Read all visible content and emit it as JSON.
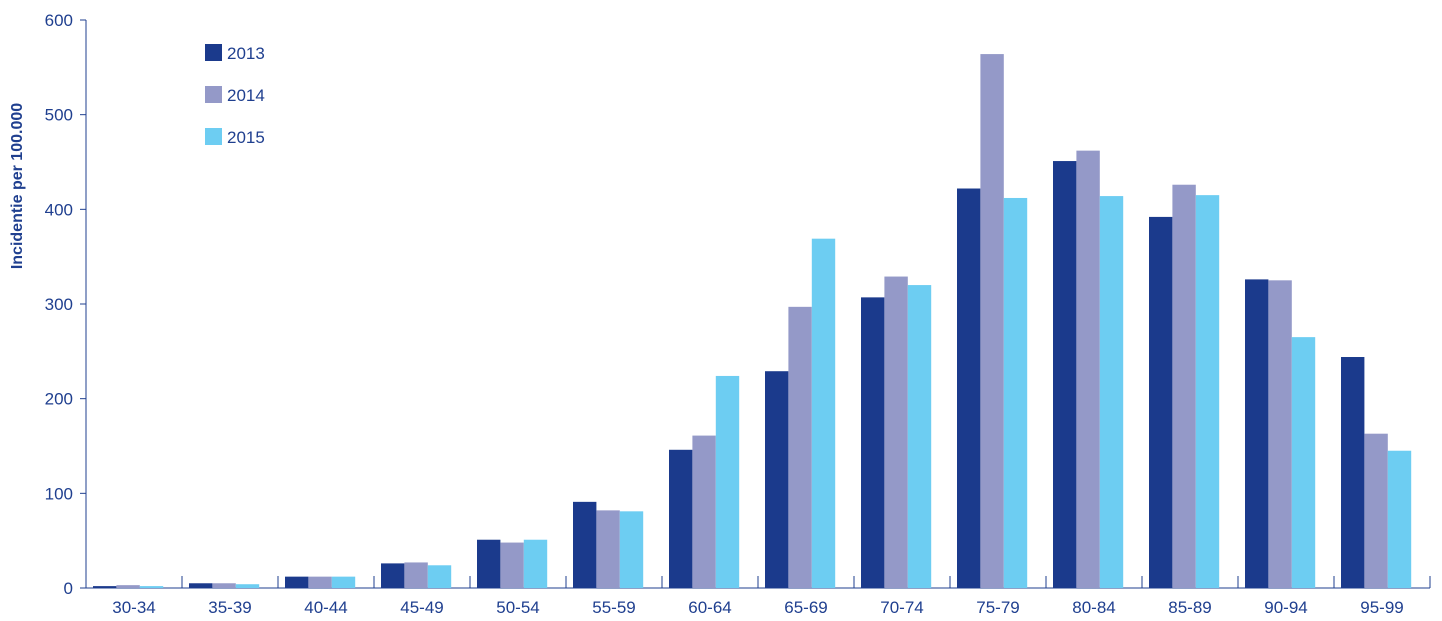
{
  "chart_data": {
    "type": "bar",
    "ylabel": "Incidentie per 100.000",
    "xlabel": "",
    "ylim": [
      0,
      600
    ],
    "yticks": [
      0,
      100,
      200,
      300,
      400,
      500,
      600
    ],
    "grid": false,
    "legend_position": "top-left",
    "categories": [
      "30-34",
      "35-39",
      "40-44",
      "45-49",
      "50-54",
      "55-59",
      "60-64",
      "65-69",
      "70-74",
      "75-79",
      "80-84",
      "85-89",
      "90-94",
      "95-99"
    ],
    "series": [
      {
        "name": "2013",
        "color": "#1b3a8c",
        "values": [
          2,
          5,
          12,
          26,
          51,
          91,
          146,
          229,
          307,
          422,
          451,
          392,
          326,
          244
        ]
      },
      {
        "name": "2014",
        "color": "#9499c8",
        "values": [
          3,
          5,
          12,
          27,
          48,
          82,
          161,
          297,
          329,
          564,
          462,
          426,
          325,
          163
        ]
      },
      {
        "name": "2015",
        "color": "#6dcdf2",
        "values": [
          2,
          4,
          12,
          24,
          51,
          81,
          224,
          369,
          320,
          412,
          414,
          415,
          265,
          145
        ]
      }
    ]
  }
}
